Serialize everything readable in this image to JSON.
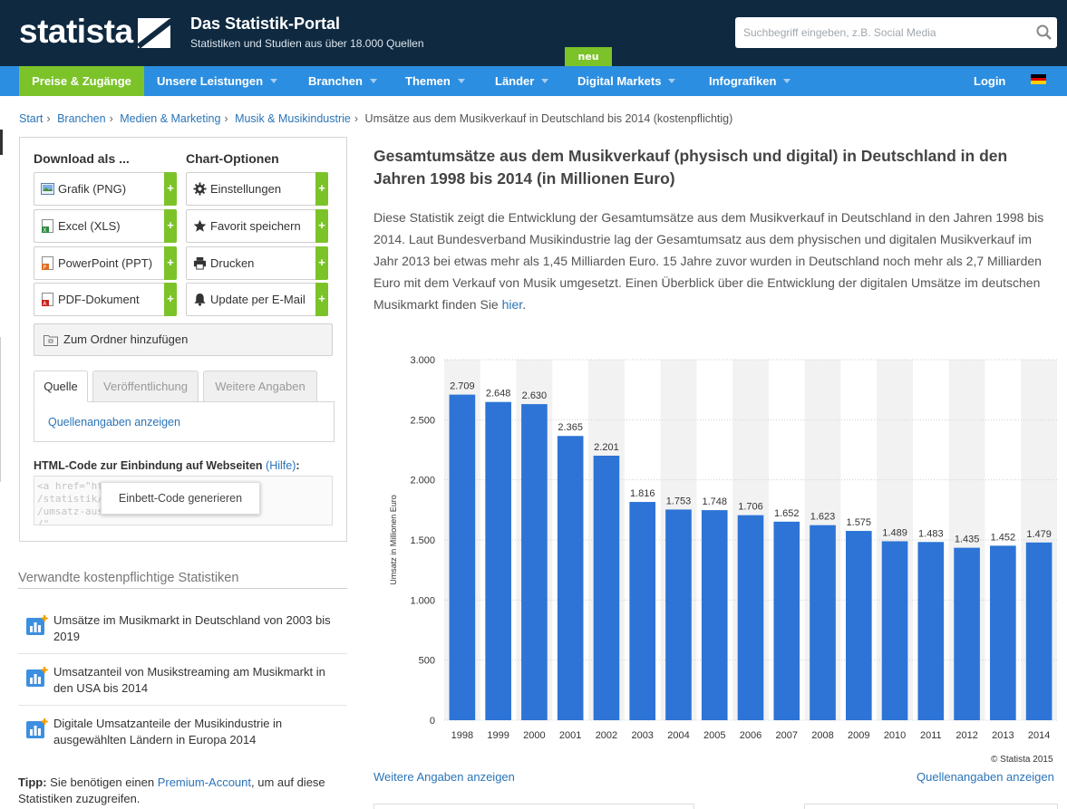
{
  "header": {
    "logo": "statista",
    "title": "Das Statistik-Portal",
    "subtitle": "Statistiken und Studien aus über 18.000 Quellen",
    "search_placeholder": "Suchbegriff eingeben, z.B. Social Media",
    "neu_badge": "neu"
  },
  "nav": {
    "items": [
      "Preise & Zugänge",
      "Unsere Leistungen",
      "Branchen",
      "Themen",
      "Länder",
      "Digital Markets",
      "Infografiken"
    ],
    "login": "Login"
  },
  "breadcrumb": {
    "items": [
      "Start",
      "Branchen",
      "Medien & Marketing",
      "Musik & Musikindustrie"
    ],
    "current": "Umsätze aus dem Musikverkauf in Deutschland bis 2014 (kostenpflichtig)"
  },
  "sidebar": {
    "download_heading": "Download als ...",
    "options_heading": "Chart-Optionen",
    "download_buttons": [
      "Grafik (PNG)",
      "Excel (XLS)",
      "PowerPoint (PPT)",
      "PDF-Dokument"
    ],
    "option_buttons": [
      "Einstellungen",
      "Favorit speichern",
      "Drucken",
      "Update per E-Mail"
    ],
    "plus": "+",
    "folder_button": "Zum Ordner hinzufügen",
    "tabs": [
      "Quelle",
      "Veröffentlichung",
      "Weitere Angaben"
    ],
    "source_link": "Quellenangaben anzeigen",
    "embed_heading": "HTML-Code zur Einbindung auf Webseiten",
    "embed_help": "(Hilfe)",
    "embed_code": "<a href=\"https://de.statista.com\n/statistik/daten/studie/...nfrage\n/umsatz-aus-dem-musikverkauf...1998\n/\"...",
    "embed_generate": "Einbett-Code generieren"
  },
  "related": {
    "heading": "Verwandte kostenpflichtige Statistiken",
    "items": [
      "Umsätze im Musikmarkt in Deutschland von 2003 bis 2019",
      "Umsatzanteil von Musikstreaming am Musikmarkt in den USA bis 2014",
      "Digitale Umsatzanteile der Musikindustrie in ausgewählten Ländern in Europa 2014"
    ],
    "tip_label": "Tipp:",
    "tip_text_1": " Sie benötigen einen ",
    "tip_link": "Premium-Account",
    "tip_text_2": ", um auf diese Statistiken zuzugreifen."
  },
  "main": {
    "title": "Gesamtumsätze aus dem Musikverkauf (physisch und digital) in Deutschland in den Jahren 1998 bis 2014 (in Millionen Euro)",
    "description": "Diese Statistik zeigt die Entwicklung der Gesamtumsätze aus dem Musikverkauf in Deutschland in den Jahren 1998 bis 2014. Laut Bundesverband Musikindustrie lag der Gesamtumsatz aus dem physischen und digitalen Musikverkauf im Jahr 2013 bei etwas mehr als 1,45 Milliarden Euro. 15 Jahre zuvor wurden in Deutschland noch mehr als 2,7 Milliarden Euro mit dem Verkauf von Musik umgesetzt. Einen Überblick über die Entwicklung der digitalen Umsätze im deutschen Musikmarkt finden Sie ",
    "description_link": "hier",
    "description_end": ".",
    "copyright": "© Statista 2015",
    "more_link": "Weitere Angaben anzeigen",
    "source_link": "Quellenangaben anzeigen"
  },
  "colors": {
    "header_bg": "#0f2940",
    "nav_bg": "#2c8ee0",
    "accent_green": "#7cc32a",
    "bar": "#2d74d6",
    "link": "#2a74b8"
  },
  "chart_data": {
    "type": "bar",
    "categories": [
      "1998",
      "1999",
      "2000",
      "2001",
      "2002",
      "2003",
      "2004",
      "2005",
      "2006",
      "2007",
      "2008",
      "2009",
      "2010",
      "2011",
      "2012",
      "2013",
      "2014"
    ],
    "values": [
      2709,
      2648,
      2630,
      2365,
      2201,
      1816,
      1753,
      1748,
      1706,
      1652,
      1623,
      1575,
      1489,
      1483,
      1435,
      1452,
      1479
    ],
    "value_labels": [
      "2.709",
      "2.648",
      "2.630",
      "2.365",
      "2.201",
      "1.816",
      "1.753",
      "1.748",
      "1.706",
      "1.652",
      "1.623",
      "1.575",
      "1.489",
      "1.483",
      "1.435",
      "1.452",
      "1.479"
    ],
    "ylabel": "Umsatz in Millionen Euro",
    "ylim": [
      0,
      3000
    ],
    "yticks": [
      0,
      500,
      1000,
      1500,
      2000,
      2500,
      3000
    ],
    "ytick_labels": [
      "0",
      "500",
      "1.000",
      "1.500",
      "2.000",
      "2.500",
      "3.000"
    ],
    "grid": true,
    "legend": "none"
  }
}
